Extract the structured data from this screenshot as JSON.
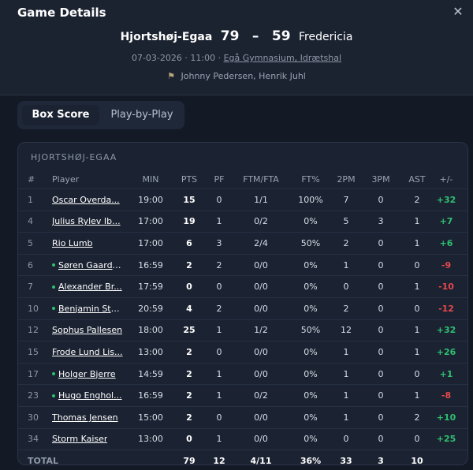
{
  "modal": {
    "title": "Game Details",
    "close_icon": "close-icon"
  },
  "game": {
    "home_team": "Hjortshøj-Egaa",
    "home_score": "79",
    "separator": "–",
    "away_score": "59",
    "away_team": "Fredericia",
    "date_time": "07-03-2026 · 11:00 ·",
    "venue": "Egå Gymnasium, Idrætshal",
    "referees": "Johnny Pedersen, Henrik Juhl"
  },
  "tabs": {
    "box_score": "Box Score",
    "play_by_play": "Play-by-Play"
  },
  "box": {
    "team_label": "HJORTSHØJ-EGAA",
    "columns": [
      "#",
      "Player",
      "MIN",
      "PTS",
      "PF",
      "FTM/FTA",
      "FT%",
      "2PM",
      "3PM",
      "AST",
      "+/-"
    ],
    "rows": [
      {
        "num": "1",
        "player": "Oscar Overda...",
        "starter": false,
        "min": "19:00",
        "pts": "15",
        "pf": "0",
        "ft": "1/1",
        "ftp": "100%",
        "p2": "7",
        "p3": "0",
        "ast": "2",
        "pm": "+32",
        "pm_sign": "pos"
      },
      {
        "num": "4",
        "player": "Julius Rylev Ib...",
        "starter": false,
        "min": "17:00",
        "pts": "19",
        "pf": "1",
        "ft": "0/2",
        "ftp": "0%",
        "p2": "5",
        "p3": "3",
        "ast": "1",
        "pm": "+7",
        "pm_sign": "pos"
      },
      {
        "num": "5",
        "player": "Rio Lumb",
        "starter": false,
        "min": "17:00",
        "pts": "6",
        "pf": "3",
        "ft": "2/4",
        "ftp": "50%",
        "p2": "2",
        "p3": "0",
        "ast": "1",
        "pm": "+6",
        "pm_sign": "pos"
      },
      {
        "num": "6",
        "player": "Søren Gaard ...",
        "starter": true,
        "min": "16:59",
        "pts": "2",
        "pf": "2",
        "ft": "0/0",
        "ftp": "0%",
        "p2": "1",
        "p3": "0",
        "ast": "0",
        "pm": "-9",
        "pm_sign": "neg"
      },
      {
        "num": "7",
        "player": "Alexander Br...",
        "starter": true,
        "min": "17:59",
        "pts": "0",
        "pf": "0",
        "ft": "0/0",
        "ftp": "0%",
        "p2": "0",
        "p3": "0",
        "ast": "1",
        "pm": "-10",
        "pm_sign": "neg"
      },
      {
        "num": "10",
        "player": "Benjamin Ste...",
        "starter": true,
        "min": "20:59",
        "pts": "4",
        "pf": "2",
        "ft": "0/0",
        "ftp": "0%",
        "p2": "2",
        "p3": "0",
        "ast": "0",
        "pm": "-12",
        "pm_sign": "neg"
      },
      {
        "num": "12",
        "player": "Sophus Pallesen",
        "starter": false,
        "min": "18:00",
        "pts": "25",
        "pf": "1",
        "ft": "1/2",
        "ftp": "50%",
        "p2": "12",
        "p3": "0",
        "ast": "1",
        "pm": "+32",
        "pm_sign": "pos"
      },
      {
        "num": "15",
        "player": "Frode Lund Lis...",
        "starter": false,
        "min": "13:00",
        "pts": "2",
        "pf": "0",
        "ft": "0/0",
        "ftp": "0%",
        "p2": "1",
        "p3": "0",
        "ast": "1",
        "pm": "+26",
        "pm_sign": "pos"
      },
      {
        "num": "17",
        "player": "Holger Bjerre",
        "starter": true,
        "min": "14:59",
        "pts": "2",
        "pf": "1",
        "ft": "0/0",
        "ftp": "0%",
        "p2": "1",
        "p3": "0",
        "ast": "0",
        "pm": "+1",
        "pm_sign": "pos"
      },
      {
        "num": "23",
        "player": "Hugo Enghol...",
        "starter": true,
        "min": "16:59",
        "pts": "2",
        "pf": "1",
        "ft": "0/2",
        "ftp": "0%",
        "p2": "1",
        "p3": "0",
        "ast": "1",
        "pm": "-8",
        "pm_sign": "neg"
      },
      {
        "num": "30",
        "player": "Thomas Jensen",
        "starter": false,
        "min": "15:00",
        "pts": "2",
        "pf": "0",
        "ft": "0/0",
        "ftp": "0%",
        "p2": "1",
        "p3": "0",
        "ast": "2",
        "pm": "+10",
        "pm_sign": "pos"
      },
      {
        "num": "34",
        "player": "Storm Kaiser",
        "starter": false,
        "min": "13:00",
        "pts": "0",
        "pf": "1",
        "ft": "0/0",
        "ftp": "0%",
        "p2": "0",
        "p3": "0",
        "ast": "0",
        "pm": "+25",
        "pm_sign": "pos"
      }
    ],
    "totals": {
      "label": "TOTAL",
      "pts": "79",
      "pf": "12",
      "ft": "4/11",
      "ftp": "36%",
      "p2": "33",
      "p3": "3",
      "ast": "10"
    }
  },
  "colors": {
    "positive": "#2fbf71",
    "negative": "#e5484d",
    "background": "#1a2130"
  }
}
